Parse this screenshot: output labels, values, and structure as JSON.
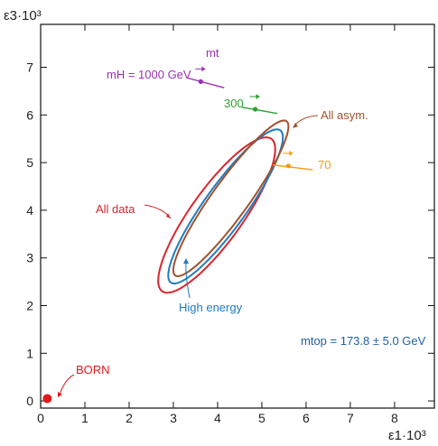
{
  "chart_data": {
    "type": "scatter",
    "x_axis": {
      "label": "ε1·10³",
      "range": [
        0,
        8.9
      ],
      "ticks": [
        "0",
        "1",
        "2",
        "3",
        "4",
        "5",
        "6",
        "7",
        "8"
      ]
    },
    "y_axis": {
      "label": "ε3·10³",
      "range": [
        -0.15,
        7.9
      ],
      "ticks": [
        "0",
        "1",
        "2",
        "3",
        "4",
        "5",
        "6",
        "7"
      ]
    },
    "grid": false,
    "ellipses": [
      {
        "name": "All data",
        "color": "#d7262e",
        "center": [
          3.98,
          3.9
        ],
        "semi_axes": [
          2.02,
          0.57
        ],
        "angle_deg": 52
      },
      {
        "name": "High energy",
        "color": "#1f7bbf",
        "center": [
          4.18,
          4.08
        ],
        "semi_axes": [
          2.02,
          0.46
        ],
        "angle_deg": 52
      },
      {
        "name": "All asym.",
        "color": "#a0522d",
        "center": [
          4.3,
          4.25
        ],
        "semi_axes": [
          2.05,
          0.4
        ],
        "angle_deg": 52
      }
    ],
    "points": [
      {
        "name": "BORN",
        "x": 0.15,
        "y": 0.05,
        "color": "#e31a1c"
      }
    ],
    "mtop_arrows": [
      {
        "label": "mH = 1000 GeV",
        "x": 3.62,
        "y": 6.7,
        "from": [
          3.3,
          6.78
        ],
        "to": [
          4.15,
          6.57
        ],
        "color": "#9b30b5"
      },
      {
        "label": "300",
        "x": 4.85,
        "y": 6.12,
        "from": [
          4.55,
          6.16
        ],
        "to": [
          5.35,
          6.03
        ],
        "color": "#2ca02c"
      },
      {
        "label": "70",
        "x": 5.6,
        "y": 4.93,
        "from": [
          5.25,
          4.95
        ],
        "to": [
          6.15,
          4.85
        ],
        "color": "#f39c12"
      }
    ],
    "annotations": {
      "mt_arrow_label": "mt",
      "all_data": "All data",
      "high_energy": "High energy",
      "all_asym": "All asym.",
      "born": "BORN",
      "mtop": "mtop = 173.8 ± 5.0 GeV"
    },
    "colors": {
      "frame": "#111111",
      "text": "#222222"
    }
  }
}
